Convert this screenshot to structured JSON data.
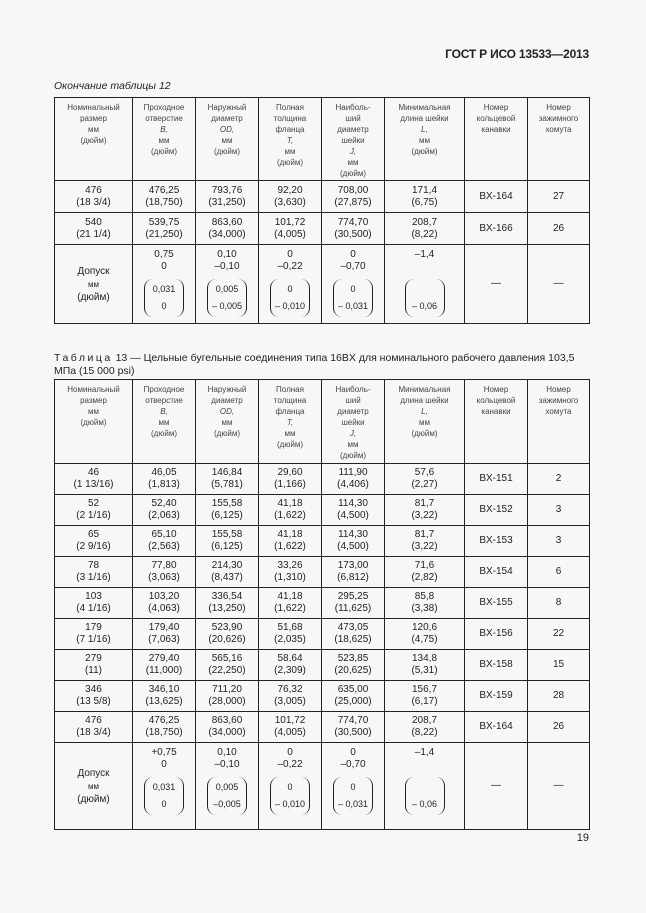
{
  "header": {
    "doc_code": "ГОСТ Р ИСО 13533—2013"
  },
  "columns": [
    [
      "Номинальный",
      "размер",
      "мм",
      "(дюйм)"
    ],
    [
      "Проходное",
      "отверстие",
      "B,",
      "мм",
      "(дюйм)"
    ],
    [
      "Наружный",
      "диаметр",
      "OD,",
      "мм",
      "(дюйм)"
    ],
    [
      "Полная",
      "толщина",
      "фланца",
      "T,",
      "мм",
      "(дюйм)"
    ],
    [
      "Наиболь-",
      "ший",
      "диаметр",
      "шейки",
      "J,",
      "мм",
      "(дюйм)"
    ],
    [
      "Минимальная",
      "длина шейки",
      "L,",
      "мм",
      "(дюйм)"
    ],
    [
      "Номер",
      "кольцевой",
      "канавки"
    ],
    [
      "Номер",
      "зажимного",
      "хомута"
    ]
  ],
  "table1": {
    "caption": "Окончание таблицы 12",
    "rows": [
      [
        [
          "476",
          "(18 3/4)"
        ],
        [
          "476,25",
          "(18,750)"
        ],
        [
          "793,76",
          "(31,250)"
        ],
        [
          "92,20",
          "(3,630)"
        ],
        [
          "708,00",
          "(27,875)"
        ],
        [
          "171,4",
          "(6,75)"
        ],
        [
          "BX-164"
        ],
        [
          "27"
        ]
      ],
      [
        [
          "540",
          "(21 1/4)"
        ],
        [
          "539,75",
          "(21,250)"
        ],
        [
          "863,60",
          "(34,000)"
        ],
        [
          "101,72",
          "(4,005)"
        ],
        [
          "774,70",
          "(30,500)"
        ],
        [
          "208,7",
          "(8,22)"
        ],
        [
          "BX-166"
        ],
        [
          "26"
        ]
      ]
    ],
    "tolerance": {
      "label": [
        "Допуск",
        "мм",
        "(дюйм)"
      ],
      "cells": [
        {
          "mm": [
            "0,75",
            "0"
          ],
          "inch": [
            "0,031",
            "0"
          ]
        },
        {
          "mm": [
            "0,10",
            "–0,10"
          ],
          "inch": [
            "0,005",
            "– 0,005"
          ]
        },
        {
          "mm": [
            "0",
            "–0,22"
          ],
          "inch": [
            "0",
            "– 0,010"
          ]
        },
        {
          "mm": [
            "0",
            "–0,70"
          ],
          "inch": [
            "0",
            "– 0,031"
          ]
        },
        {
          "mm": [
            "–1,4"
          ],
          "inch": [
            "",
            "– 0,06"
          ]
        }
      ],
      "dashes": [
        "—",
        "—"
      ]
    }
  },
  "table2": {
    "caption_label": "Таблица",
    "caption_text": "13 — Цельные бугельные соединения типа 16BX для номинального рабочего давления 103,5 МПа (15 000 psi)",
    "rows": [
      [
        [
          "46",
          "(1 13/16)"
        ],
        [
          "46,05",
          "(1,813)"
        ],
        [
          "146,84",
          "(5,781)"
        ],
        [
          "29,60",
          "(1,166)"
        ],
        [
          "111,90",
          "(4,406)"
        ],
        [
          "57,6",
          "(2,27)"
        ],
        [
          "BX-151"
        ],
        [
          "2"
        ]
      ],
      [
        [
          "52",
          "(2 1/16)"
        ],
        [
          "52,40",
          "(2,063)"
        ],
        [
          "155,58",
          "(6,125)"
        ],
        [
          "41,18",
          "(1,622)"
        ],
        [
          "114,30",
          "(4,500)"
        ],
        [
          "81,7",
          "(3,22)"
        ],
        [
          "BX-152"
        ],
        [
          "3"
        ]
      ],
      [
        [
          "65",
          "(2 9/16)"
        ],
        [
          "65,10",
          "(2,563)"
        ],
        [
          "155,58",
          "(6,125)"
        ],
        [
          "41,18",
          "(1,622)"
        ],
        [
          "114,30",
          "(4,500)"
        ],
        [
          "81,7",
          "(3,22)"
        ],
        [
          "BX-153"
        ],
        [
          "3"
        ]
      ],
      [
        [
          "78",
          "(3 1/16)"
        ],
        [
          "77,80",
          "(3,063)"
        ],
        [
          "214,30",
          "(8,437)"
        ],
        [
          "33,26",
          "(1,310)"
        ],
        [
          "173,00",
          "(6,812)"
        ],
        [
          "71,6",
          "(2,82)"
        ],
        [
          "BX-154"
        ],
        [
          "6"
        ]
      ],
      [
        [
          "103",
          "(4 1/16)"
        ],
        [
          "103,20",
          "(4,063)"
        ],
        [
          "336,54",
          "(13,250)"
        ],
        [
          "41,18",
          "(1,622)"
        ],
        [
          "295,25",
          "(11,625)"
        ],
        [
          "85,8",
          "(3,38)"
        ],
        [
          "BX-155"
        ],
        [
          "8"
        ]
      ],
      [
        [
          "179",
          "(7 1/16)"
        ],
        [
          "179,40",
          "(7,063)"
        ],
        [
          "523,90",
          "(20,626)"
        ],
        [
          "51,68",
          "(2,035)"
        ],
        [
          "473,05",
          "(18,625)"
        ],
        [
          "120,6",
          "(4,75)"
        ],
        [
          "BX-156"
        ],
        [
          "22"
        ]
      ],
      [
        [
          "279",
          "(11)"
        ],
        [
          "279,40",
          "(11,000)"
        ],
        [
          "565,16",
          "(22,250)"
        ],
        [
          "58,64",
          "(2,309)"
        ],
        [
          "523,85",
          "(20,625)"
        ],
        [
          "134,8",
          "(5,31)"
        ],
        [
          "BX-158"
        ],
        [
          "15"
        ]
      ],
      [
        [
          "346",
          "(13 5/8)"
        ],
        [
          "346,10",
          "(13,625)"
        ],
        [
          "711,20",
          "(28,000)"
        ],
        [
          "76,32",
          "(3,005)"
        ],
        [
          "635,00",
          "(25,000)"
        ],
        [
          "156,7",
          "(6,17)"
        ],
        [
          "BX-159"
        ],
        [
          "28"
        ]
      ],
      [
        [
          "476",
          "(18 3/4)"
        ],
        [
          "476,25",
          "(18,750)"
        ],
        [
          "863,60",
          "(34,000)"
        ],
        [
          "101,72",
          "(4,005)"
        ],
        [
          "774,70",
          "(30,500)"
        ],
        [
          "208,7",
          "(8,22)"
        ],
        [
          "BX-164"
        ],
        [
          "26"
        ]
      ]
    ],
    "tolerance": {
      "label": [
        "Допуск",
        "мм",
        "(дюйм)"
      ],
      "cells": [
        {
          "mm": [
            "+0,75",
            "0"
          ],
          "inch": [
            "0,031",
            "0"
          ]
        },
        {
          "mm": [
            "0,10",
            "–0,10"
          ],
          "inch": [
            "0,005",
            "–0,005"
          ]
        },
        {
          "mm": [
            "0",
            "–0,22"
          ],
          "inch": [
            "0",
            "– 0,010"
          ]
        },
        {
          "mm": [
            "0",
            "–0,70"
          ],
          "inch": [
            "0",
            "– 0,031"
          ]
        },
        {
          "mm": [
            "–1,4"
          ],
          "inch": [
            "",
            "– 0,06"
          ]
        }
      ],
      "dashes": [
        "—",
        "—"
      ]
    }
  },
  "footer": {
    "page_number": "19"
  }
}
